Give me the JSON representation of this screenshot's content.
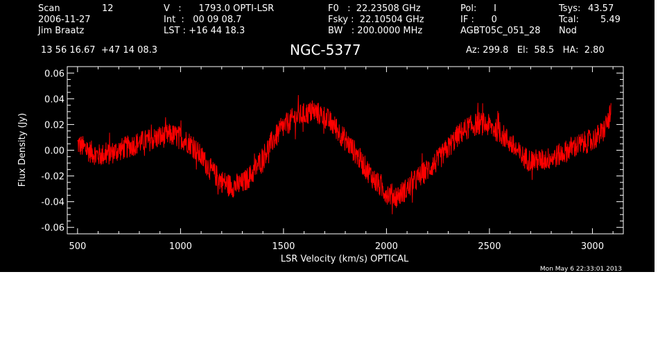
{
  "header": {
    "scan_label": "Scan",
    "scan_value": "12",
    "date": "2006-11-27",
    "observer": "Jim Braatz",
    "v_line": "V   :      1793.0 OPTI-LSR",
    "int_line": "Int  :   00 09 08.7",
    "lst_line": "LST : +16 44 18.3",
    "f0_line": "F0   :  22.23508 GHz",
    "fsky_line": "Fsky :  22.10504 GHz",
    "bw_line": "BW   : 200.0000 MHz",
    "pol_line": "Pol:      I",
    "if_line": "IF :      0",
    "project": "AGBT05C_051_28",
    "tsys_label": "Tsys:",
    "tsys_value": "43.57",
    "tcal_label": "Tcal:",
    "tcal_value": "5.49",
    "nod": "Nod",
    "coords": "13 56 16.67  +47 14 08.3",
    "azelha": "Az: 299.8   El:  58.5   HA:  2.80",
    "timestamp": "Mon May  6 22:33:01 2013"
  },
  "chart_data": {
    "type": "line",
    "title": "NGC-5377",
    "xlabel": "LSR Velocity (km/s) OPTICAL",
    "ylabel": "Flux Density (Jy)",
    "xlim": [
      450,
      3150
    ],
    "ylim": [
      -0.065,
      0.065
    ],
    "xticks": [
      500,
      1000,
      1500,
      2000,
      2500,
      3000
    ],
    "xtick_labels": [
      "500",
      "1000",
      "1500",
      "2000",
      "2500",
      "3000"
    ],
    "yticks": [
      -0.06,
      -0.04,
      -0.02,
      0.0,
      0.02,
      0.04,
      0.06
    ],
    "ytick_labels": [
      "-0.06",
      "-0.04",
      "-0.02",
      "0.00",
      "0.02",
      "0.04",
      "0.06"
    ],
    "grid": false,
    "series": [
      {
        "color": "#ff0000",
        "noise_amplitude": 0.009,
        "x": [
          500,
          550,
          600,
          650,
          700,
          750,
          800,
          850,
          900,
          950,
          1000,
          1050,
          1100,
          1150,
          1200,
          1250,
          1300,
          1350,
          1400,
          1450,
          1500,
          1550,
          1600,
          1650,
          1700,
          1750,
          1800,
          1850,
          1900,
          1950,
          2000,
          2050,
          2100,
          2150,
          2200,
          2250,
          2300,
          2350,
          2400,
          2450,
          2500,
          2550,
          2600,
          2650,
          2700,
          2750,
          2800,
          2850,
          2900,
          2950,
          3000,
          3050,
          3090
        ],
        "y": [
          0.005,
          0.0,
          -0.004,
          -0.003,
          0.0,
          0.003,
          0.006,
          0.008,
          0.01,
          0.012,
          0.01,
          0.005,
          -0.005,
          -0.016,
          -0.024,
          -0.028,
          -0.026,
          -0.018,
          -0.005,
          0.008,
          0.018,
          0.025,
          0.028,
          0.03,
          0.026,
          0.018,
          0.008,
          -0.002,
          -0.014,
          -0.025,
          -0.033,
          -0.036,
          -0.03,
          -0.022,
          -0.015,
          -0.008,
          0.002,
          0.012,
          0.018,
          0.021,
          0.019,
          0.014,
          0.006,
          -0.004,
          -0.008,
          -0.008,
          -0.006,
          -0.003,
          0.002,
          0.005,
          0.008,
          0.014,
          0.028
        ]
      }
    ]
  }
}
